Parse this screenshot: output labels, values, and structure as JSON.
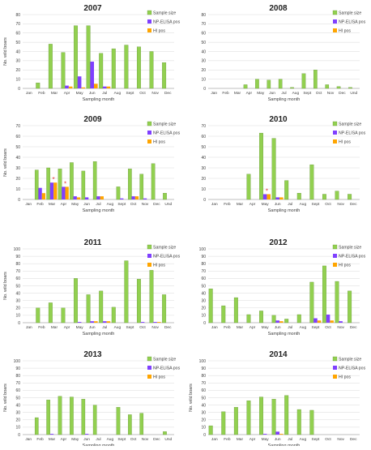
{
  "colors": {
    "sample": "#92d050",
    "sample_stroke": "#5a8a2a",
    "np": "#7f3fff",
    "hi": "#ffa500",
    "grid": "#d9d9d9",
    "axis": "#808080",
    "text": "#404040"
  },
  "chart_data": [
    {
      "type": "bar",
      "title": "2007",
      "xlabel": "Sampling month",
      "ylabel": "No. wild boars",
      "categories": [
        "Jan",
        "Feb",
        "Mar",
        "Apr",
        "May",
        "Jun",
        "Jul",
        "Aug",
        "Sept",
        "Oct",
        "Nov",
        "Dec"
      ],
      "ylim": [
        0,
        80
      ],
      "yticks": [
        0,
        10,
        20,
        30,
        40,
        50,
        60,
        70,
        80
      ],
      "legend": "top-right",
      "grid": true,
      "series": [
        {
          "name": "Sample size",
          "values": [
            0,
            6,
            48,
            39,
            68,
            68,
            38,
            43,
            47,
            45,
            40,
            28
          ]
        },
        {
          "name": "NP-ELISA pos",
          "values": [
            0,
            0,
            0,
            3,
            13,
            29,
            2,
            0,
            0,
            0,
            0,
            0
          ]
        },
        {
          "name": "HI pos",
          "values": [
            0,
            0,
            0,
            2,
            1,
            5,
            2,
            0,
            0,
            0,
            0,
            0
          ]
        }
      ],
      "annotations": []
    },
    {
      "type": "bar",
      "title": "2008",
      "xlabel": "Sampling month",
      "ylabel": "",
      "categories": [
        "Jan",
        "Feb",
        "Mar",
        "Apr",
        "May",
        "Jun",
        "Jul",
        "Aug",
        "Sept",
        "Oct",
        "Nov",
        "Dec",
        "Und"
      ],
      "ylim": [
        0,
        80
      ],
      "yticks": [
        0,
        10,
        20,
        30,
        40,
        50,
        60,
        70,
        80
      ],
      "legend": "top-right",
      "grid": true,
      "series": [
        {
          "name": "Sample size",
          "values": [
            0,
            0,
            0,
            4,
            10,
            9,
            10,
            1,
            16,
            20,
            4,
            2,
            1
          ]
        },
        {
          "name": "NP-ELISA pos",
          "values": [
            0,
            0,
            0,
            0,
            0,
            0,
            0,
            0,
            0,
            0,
            0,
            0,
            0
          ]
        },
        {
          "name": "HI pos",
          "values": [
            0,
            0,
            0,
            0,
            0,
            0,
            0,
            0,
            0,
            0,
            0,
            0,
            0
          ]
        }
      ],
      "annotations": []
    },
    {
      "type": "bar",
      "title": "2009",
      "xlabel": "Sampling month",
      "ylabel": "No. wild boars",
      "categories": [
        "Jan",
        "Feb",
        "Mar",
        "Apr",
        "May",
        "Jun",
        "Jul",
        "Aug",
        "Sept",
        "Oct",
        "Nov",
        "Dec",
        "Und"
      ],
      "ylim": [
        0,
        70
      ],
      "yticks": [
        0,
        10,
        20,
        30,
        40,
        50,
        60,
        70
      ],
      "legend": "top-right",
      "grid": true,
      "series": [
        {
          "name": "Sample size",
          "values": [
            0,
            28,
            30,
            29,
            35,
            27,
            36,
            0,
            12,
            29,
            24,
            34,
            6
          ]
        },
        {
          "name": "NP-ELISA pos",
          "values": [
            0,
            11,
            16,
            12,
            3,
            2,
            3,
            0,
            1,
            3,
            1,
            0,
            0
          ]
        },
        {
          "name": "HI pos",
          "values": [
            0,
            6,
            16,
            12,
            2,
            0,
            3,
            0,
            0,
            3,
            0,
            0,
            0
          ]
        }
      ],
      "annotations": [
        {
          "category": "Mar",
          "text": "*"
        },
        {
          "category": "Apr",
          "text": "*"
        }
      ]
    },
    {
      "type": "bar",
      "title": "2010",
      "xlabel": "Sampling month",
      "ylabel": "",
      "categories": [
        "Jan",
        "Feb",
        "Mar",
        "Apr",
        "May",
        "Jun",
        "Jul",
        "Aug",
        "Sept",
        "Oct",
        "Nov",
        "Dec"
      ],
      "ylim": [
        0,
        70
      ],
      "yticks": [
        0,
        10,
        20,
        30,
        40,
        50,
        60,
        70
      ],
      "legend": "top-right",
      "grid": true,
      "series": [
        {
          "name": "Sample size",
          "values": [
            0,
            0,
            0,
            24,
            63,
            58,
            18,
            6,
            33,
            5,
            8,
            5
          ]
        },
        {
          "name": "NP-ELISA pos",
          "values": [
            0,
            0,
            0,
            0,
            5,
            2,
            0,
            0,
            0,
            0,
            0,
            0
          ]
        },
        {
          "name": "HI pos",
          "values": [
            0,
            0,
            0,
            0,
            5,
            2,
            0,
            0,
            0,
            0,
            0,
            0
          ]
        }
      ],
      "annotations": [
        {
          "category": "May",
          "text": "*"
        }
      ]
    },
    {
      "type": "bar",
      "title": "2011",
      "xlabel": "Sampling month",
      "ylabel": "No. wild boars",
      "categories": [
        "Jan",
        "Feb",
        "Mar",
        "Apr",
        "May",
        "Jun",
        "Jul",
        "Aug",
        "Sept",
        "Oct",
        "Nov",
        "Dec"
      ],
      "ylim": [
        0,
        100
      ],
      "yticks": [
        0,
        10,
        20,
        30,
        40,
        50,
        60,
        70,
        80,
        90,
        100
      ],
      "legend": "top-right",
      "grid": true,
      "series": [
        {
          "name": "Sample size",
          "values": [
            0,
            20,
            27,
            20,
            60,
            38,
            43,
            21,
            84,
            59,
            71,
            38
          ]
        },
        {
          "name": "NP-ELISA pos",
          "values": [
            0,
            0,
            0,
            0,
            1,
            2,
            2,
            0,
            0,
            1,
            1,
            0
          ]
        },
        {
          "name": "HI pos",
          "values": [
            0,
            0,
            0,
            0,
            0,
            2,
            2,
            0,
            0,
            0,
            1,
            0
          ]
        }
      ],
      "annotations": []
    },
    {
      "type": "bar",
      "title": "2012",
      "xlabel": "Sampling month",
      "ylabel": "",
      "categories": [
        "Jan",
        "Feb",
        "Mar",
        "Apr",
        "May",
        "Jun",
        "Jul",
        "Aug",
        "Sept",
        "Oct",
        "Nov",
        "Dec"
      ],
      "ylim": [
        0,
        100
      ],
      "yticks": [
        0,
        10,
        20,
        30,
        40,
        50,
        60,
        70,
        80,
        90,
        100
      ],
      "legend": "top-right",
      "grid": true,
      "series": [
        {
          "name": "Sample size",
          "values": [
            46,
            23,
            34,
            11,
            16,
            10,
            5,
            11,
            55,
            77,
            56,
            43
          ]
        },
        {
          "name": "NP-ELISA pos",
          "values": [
            0,
            0,
            0,
            0,
            0,
            3,
            0,
            0,
            6,
            11,
            2,
            0
          ]
        },
        {
          "name": "HI pos",
          "values": [
            0,
            0,
            0,
            0,
            0,
            2,
            0,
            0,
            3,
            3,
            0,
            0
          ]
        }
      ],
      "annotations": []
    },
    {
      "type": "bar",
      "title": "2013",
      "xlabel": "Sampling month",
      "ylabel": "No. wild boars",
      "categories": [
        "Jan",
        "Feb",
        "Mar",
        "Apr",
        "May",
        "Jun",
        "Jul",
        "Aug",
        "Sept",
        "Oct",
        "Nov",
        "Dec",
        "Und"
      ],
      "ylim": [
        0,
        100
      ],
      "yticks": [
        0,
        10,
        20,
        30,
        40,
        50,
        60,
        70,
        80,
        90,
        100
      ],
      "legend": "top-right",
      "grid": true,
      "series": [
        {
          "name": "Sample size",
          "values": [
            0,
            23,
            47,
            52,
            51,
            48,
            40,
            0,
            37,
            27,
            29,
            0,
            4
          ]
        },
        {
          "name": "NP-ELISA pos",
          "values": [
            0,
            0,
            1,
            0,
            0,
            1,
            0,
            0,
            0,
            0,
            0,
            0,
            0
          ]
        },
        {
          "name": "HI pos",
          "values": [
            0,
            0,
            0,
            0,
            0,
            0,
            0,
            0,
            0,
            0,
            0,
            0,
            0
          ]
        }
      ],
      "annotations": []
    },
    {
      "type": "bar",
      "title": "2014",
      "xlabel": "Sampling month",
      "ylabel": "No. wild boars",
      "categories": [
        "Jan",
        "Feb",
        "Mar",
        "Apr",
        "May",
        "Jun",
        "Jul",
        "Aug",
        "Sept",
        "Oct",
        "Nov",
        "Dec"
      ],
      "ylim": [
        0,
        100
      ],
      "yticks": [
        0,
        10,
        20,
        30,
        40,
        50,
        60,
        70,
        80,
        90,
        100
      ],
      "legend": "top-right",
      "grid": true,
      "series": [
        {
          "name": "Sample size",
          "values": [
            12,
            31,
            37,
            46,
            51,
            48,
            53,
            34,
            33,
            0,
            0,
            0
          ]
        },
        {
          "name": "NP-ELISA pos",
          "values": [
            0,
            0,
            0,
            0,
            1,
            4,
            0,
            0,
            0,
            0,
            0,
            0
          ]
        },
        {
          "name": "HI pos",
          "values": [
            0,
            0,
            0,
            0,
            0,
            1,
            0,
            0,
            0,
            0,
            0,
            0
          ]
        }
      ],
      "annotations": []
    }
  ]
}
